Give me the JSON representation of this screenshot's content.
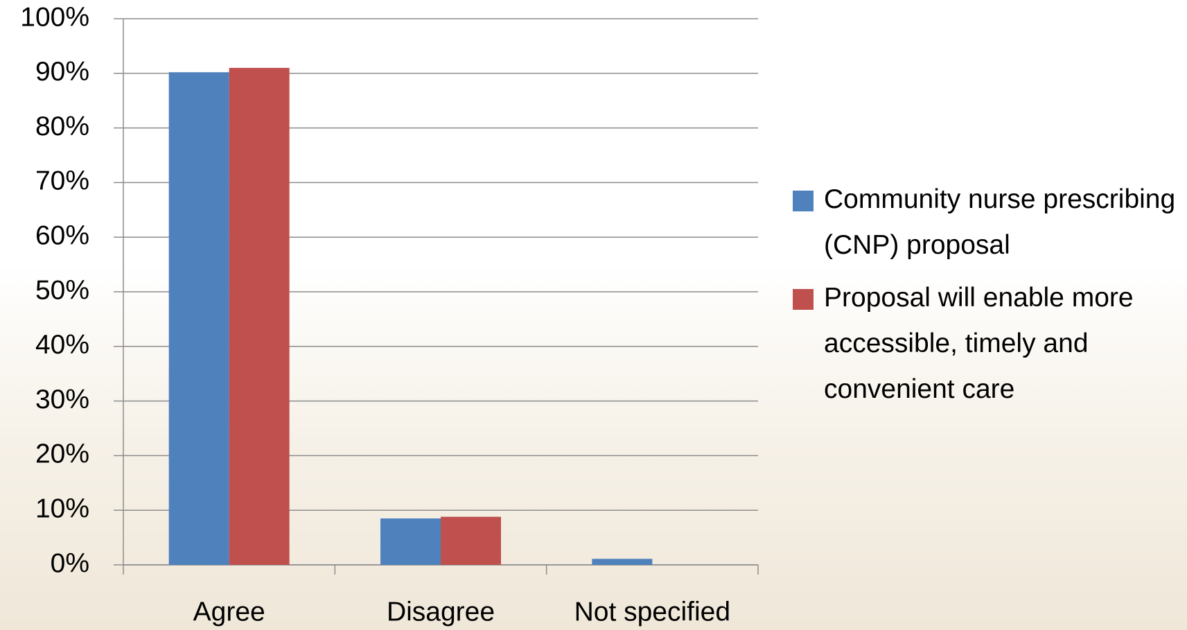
{
  "chart_data": {
    "type": "bar",
    "categories": [
      "Agree",
      "Disagree",
      "Not specified"
    ],
    "series": [
      {
        "name": " Community nurse prescribing (CNP) proposal",
        "color": "#4f81bd",
        "values": [
          90.2,
          8.5,
          1.1
        ]
      },
      {
        "name": "Proposal will enable more accessible, timely and convenient care",
        "color": "#c0504d",
        "values": [
          91,
          8.8,
          0
        ]
      }
    ],
    "ylim": [
      0,
      100
    ],
    "yticks": [
      {
        "value": 0,
        "label": "0%"
      },
      {
        "value": 10,
        "label": "10%"
      },
      {
        "value": 20,
        "label": "20%"
      },
      {
        "value": 30,
        "label": "30%"
      },
      {
        "value": 40,
        "label": "40%"
      },
      {
        "value": 50,
        "label": "50%"
      },
      {
        "value": 60,
        "label": "60%"
      },
      {
        "value": 70,
        "label": "70%"
      },
      {
        "value": 80,
        "label": "80%"
      },
      {
        "value": 90,
        "label": "90%"
      },
      {
        "value": 100,
        "label": "100%"
      }
    ],
    "grid": true,
    "legend": "right"
  }
}
